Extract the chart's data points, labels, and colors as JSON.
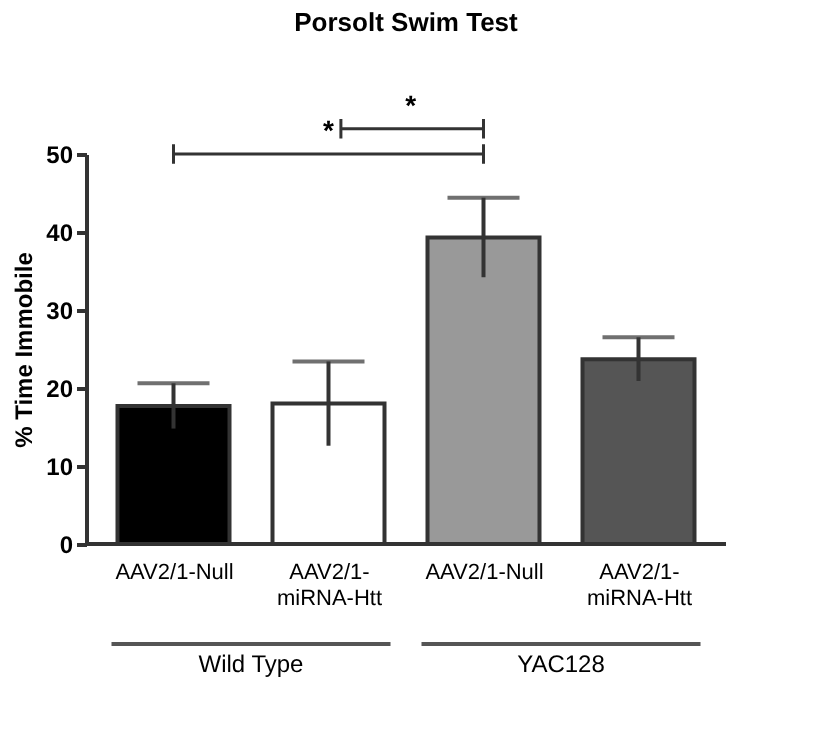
{
  "chart_data": {
    "type": "bar",
    "title": "Porsolt Swim Test",
    "ylabel": "% Time Immobile",
    "categories": [
      "AAV2/1-Null",
      "AAV2/1-miRNA-Htt",
      "AAV2/1-Null",
      "AAV2/1-miRNA-Htt"
    ],
    "values": [
      17.7,
      18.0,
      39.3,
      23.7
    ],
    "errors": [
      2.9,
      5.4,
      5.1,
      2.8
    ],
    "colors": [
      "#000000",
      "#ffffff",
      "#999999",
      "#555555"
    ],
    "ylim": [
      0,
      50
    ],
    "yticks": [
      0,
      10,
      20,
      30,
      40,
      50
    ],
    "grid": false,
    "annotations": [
      "*",
      "*",
      "Wild Type",
      "YAC128"
    ]
  }
}
